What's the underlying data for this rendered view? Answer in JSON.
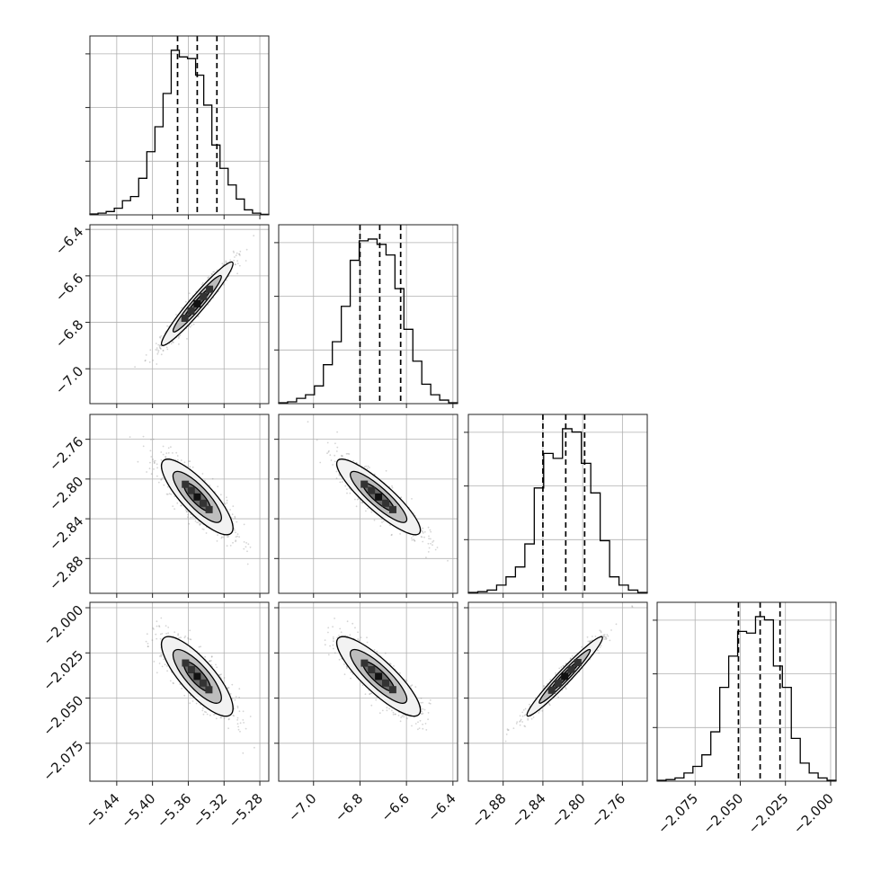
{
  "chart_data": {
    "type": "corner",
    "parameters": [
      {
        "index": 0,
        "range": [
          -5.47,
          -5.27
        ],
        "ticks": [
          -5.44,
          -5.4,
          -5.36,
          -5.32,
          -5.28
        ],
        "tick_labels": [
          "−5.44",
          "−5.40",
          "−5.36",
          "−5.32",
          "−5.28"
        ],
        "mean": -5.35,
        "sd": 0.02,
        "quantiles": [
          -5.372,
          -5.35,
          -5.328
        ],
        "hist": [
          0.005,
          0.01,
          0.02,
          0.04,
          0.085,
          0.11,
          0.22,
          0.38,
          0.53,
          0.73,
          0.99,
          0.95,
          0.94,
          0.84,
          0.66,
          0.42,
          0.28,
          0.18,
          0.095,
          0.03,
          0.01,
          0.003
        ]
      },
      {
        "index": 1,
        "range": [
          -7.15,
          -6.38
        ],
        "ticks": [
          -7.0,
          -6.8,
          -6.6,
          -6.4
        ],
        "tick_labels": [
          "−7.0",
          "−6.8",
          "−6.6",
          "−6.4"
        ],
        "mean": -6.72,
        "sd": 0.09,
        "quantiles": [
          -6.8,
          -6.715,
          -6.625
        ],
        "hist": [
          0.005,
          0.01,
          0.03,
          0.05,
          0.1,
          0.22,
          0.35,
          0.55,
          0.81,
          0.92,
          0.93,
          0.9,
          0.84,
          0.65,
          0.42,
          0.24,
          0.11,
          0.05,
          0.02,
          0.005
        ]
      },
      {
        "index": 2,
        "range": [
          -2.915,
          -2.735
        ],
        "ticks": [
          -2.88,
          -2.84,
          -2.8,
          -2.76
        ],
        "tick_labels": [
          "−2.88",
          "−2.84",
          "−2.80",
          "−2.76"
        ],
        "mean": -2.818,
        "sd": 0.019,
        "quantiles": [
          -2.84,
          -2.817,
          -2.798
        ],
        "hist": [
          0.005,
          0.01,
          0.02,
          0.05,
          0.1,
          0.16,
          0.3,
          0.64,
          0.85,
          0.82,
          1.0,
          0.98,
          0.79,
          0.61,
          0.32,
          0.1,
          0.05,
          0.02,
          0.005
        ]
      },
      {
        "index": 3,
        "range": [
          -2.096,
          -1.997
        ],
        "ticks": [
          -2.075,
          -2.05,
          -2.025,
          -2.0
        ],
        "tick_labels": [
          "−2.075",
          "−2.050",
          "−2.025",
          "−2.000"
        ],
        "mean": -2.038,
        "sd": 0.011,
        "quantiles": [
          -2.051,
          -2.039,
          -2.028
        ],
        "hist": [
          0.005,
          0.01,
          0.02,
          0.05,
          0.09,
          0.16,
          0.3,
          0.57,
          0.76,
          0.91,
          0.9,
          1.0,
          0.98,
          0.7,
          0.57,
          0.26,
          0.11,
          0.05,
          0.02,
          0.005
        ]
      }
    ],
    "correlations": [
      {
        "i": 1,
        "j": 0,
        "r": 0.96
      },
      {
        "i": 2,
        "j": 0,
        "r": -0.82
      },
      {
        "i": 2,
        "j": 1,
        "r": -0.88
      },
      {
        "i": 3,
        "j": 0,
        "r": -0.8
      },
      {
        "i": 3,
        "j": 1,
        "r": -0.85
      },
      {
        "i": 3,
        "j": 2,
        "r": 0.97
      }
    ],
    "y_axis_rows": [
      1,
      2,
      3
    ],
    "x_axis_cols": [
      0,
      1,
      2,
      3
    ],
    "grid": true,
    "colors": {
      "line": "#000000",
      "grid": "#b0b0b0",
      "scatter": "#888888",
      "contour_fill": [
        "#f2f2f2",
        "#bdbdbd",
        "#6a6a6a"
      ]
    }
  }
}
